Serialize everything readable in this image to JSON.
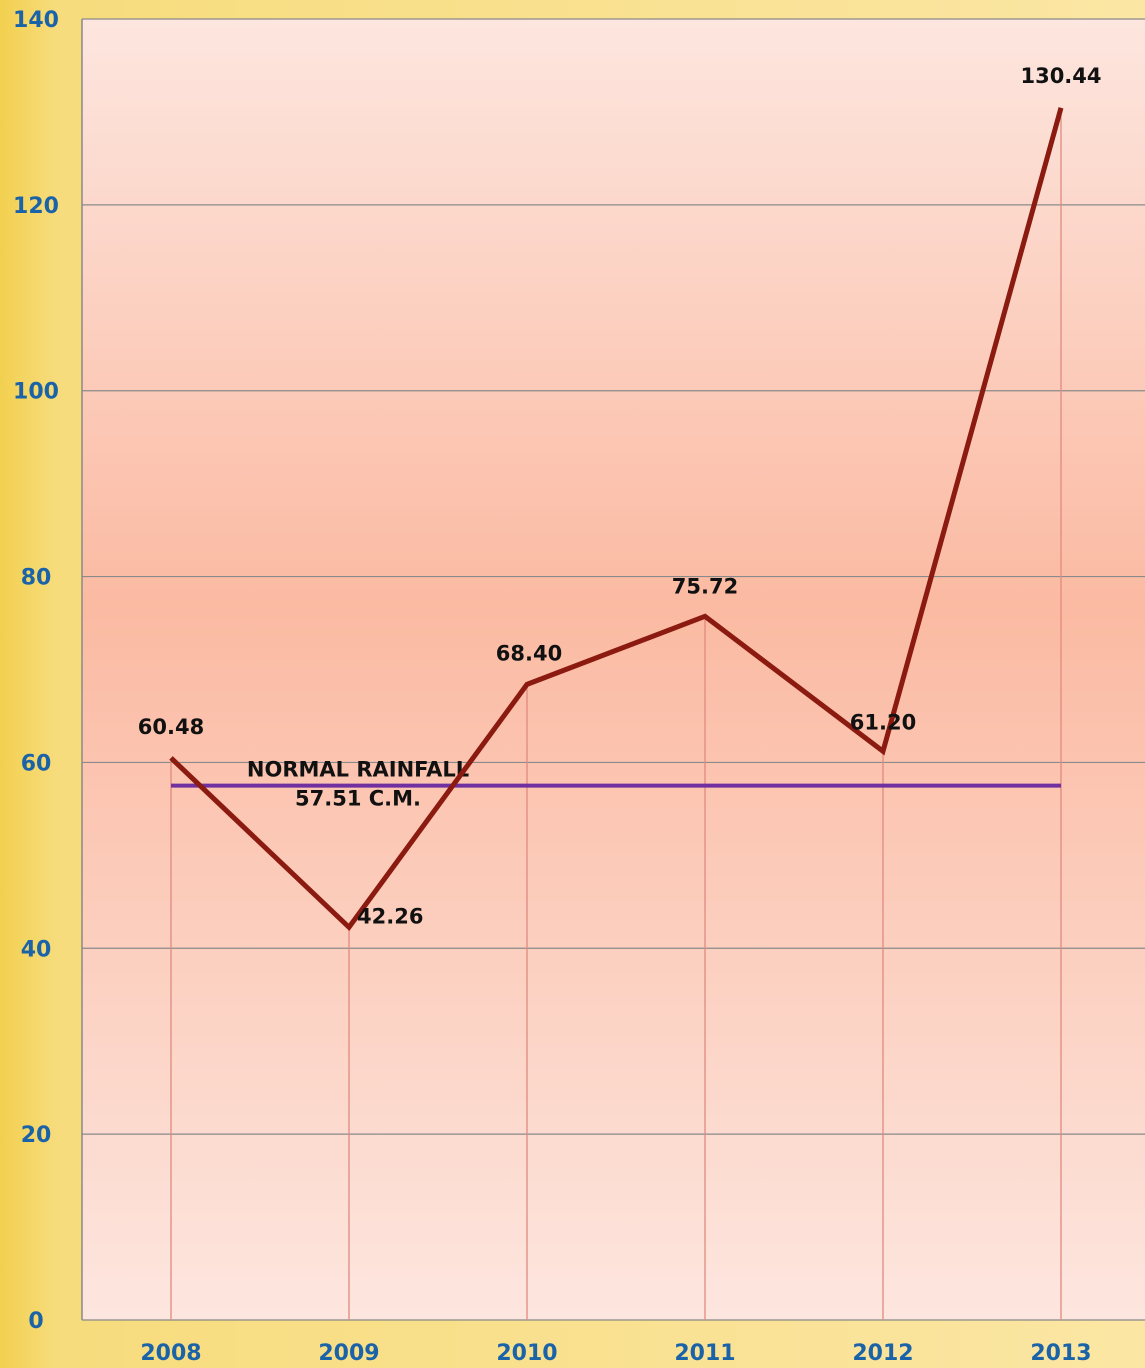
{
  "chart_data": {
    "type": "line",
    "categories": [
      "2008",
      "2009",
      "2010",
      "2011",
      "2012",
      "2013"
    ],
    "series": [
      {
        "values": [
          60.48,
          42.26,
          68.4,
          75.72,
          61.2,
          130.44
        ],
        "data_labels": [
          "60.48",
          "42.26",
          "68.40",
          "75.72",
          "61.20",
          "130.44"
        ]
      }
    ],
    "reference_line": {
      "value": 57.51,
      "label_line1": "NORMAL RAINFALL",
      "label_line2": "57.51 C.M."
    },
    "ylim": [
      0,
      140
    ],
    "yticks": [
      "0",
      "20",
      "40",
      "60",
      "80",
      "100",
      "120",
      "140"
    ],
    "grid": true,
    "title": "",
    "xlabel": "",
    "ylabel": "",
    "colors": {
      "series_line": "#8b1a10",
      "reference_line": "#7030a0",
      "tick_labels": "#1a63a8",
      "gridlines": "#8a8a8a",
      "drop_lines": "#e08a80",
      "plot_bg_edge": "#fde6df",
      "plot_bg_center": "#fbbaa2"
    }
  }
}
